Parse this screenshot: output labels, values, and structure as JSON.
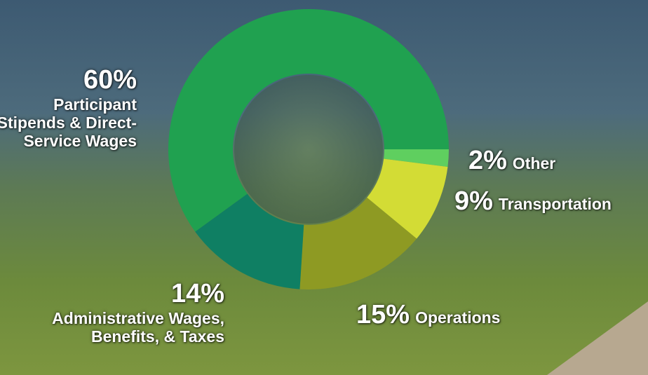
{
  "chart_data": {
    "type": "donut",
    "categories": [
      "Other",
      "Transportation",
      "Operations",
      "Administrative Wages, Benefits, & Taxes",
      "Participant Stipends & Direct-Service Wages"
    ],
    "values": [
      2,
      9,
      15,
      14,
      60
    ],
    "value_labels": [
      "2%",
      "9%",
      "15%",
      "14%",
      "60%"
    ],
    "colors": [
      "#5fcf5f",
      "#d3dc35",
      "#8e9a23",
      "#0f7f63",
      "#20a150"
    ]
  }
}
